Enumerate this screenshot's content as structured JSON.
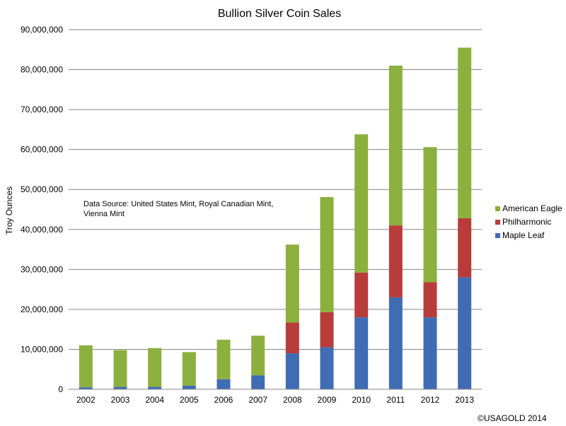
{
  "chart_data": {
    "type": "bar",
    "stacked": true,
    "title": "Bullion Silver Coin Sales",
    "ylabel": "Troy Ounces",
    "xlabel": "",
    "ylim": [
      0,
      90000000
    ],
    "ytick_step": 10000000,
    "yticks": [
      "0",
      "10,000,000",
      "20,000,000",
      "30,000,000",
      "40,000,000",
      "50,000,000",
      "60,000,000",
      "70,000,000",
      "80,000,000",
      "90,000,000"
    ],
    "categories": [
      "2002",
      "2003",
      "2004",
      "2005",
      "2006",
      "2007",
      "2008",
      "2009",
      "2010",
      "2011",
      "2012",
      "2013"
    ],
    "series": [
      {
        "name": "Maple Leaf",
        "color": "#3F6CB3",
        "values": [
          500000,
          600000,
          600000,
          900000,
          2500000,
          3500000,
          9000000,
          10500000,
          18000000,
          23000000,
          18000000,
          28000000
        ]
      },
      {
        "name": "Philharmonic",
        "color": "#B83C3A",
        "values": [
          0,
          0,
          0,
          0,
          0,
          0,
          7700000,
          8800000,
          11200000,
          18000000,
          8800000,
          14800000
        ]
      },
      {
        "name": "American Eagle",
        "color": "#8BB03E",
        "values": [
          10500000,
          9200000,
          9700000,
          8400000,
          9900000,
          9900000,
          19500000,
          28800000,
          34600000,
          40000000,
          33800000,
          42700000
        ]
      }
    ],
    "legend_order": [
      "American Eagle",
      "Philharmonic",
      "Maple Leaf"
    ],
    "legend_position": "right",
    "grid": true,
    "annotation": "Data Source: United States Mint, Royal Canadian Mint, Vienna Mint",
    "annotation_lines": [
      "Data Source: United States Mint, Royal Canadian Mint,",
      "Vienna Mint"
    ],
    "copyright": "©USAGOLD 2014"
  }
}
